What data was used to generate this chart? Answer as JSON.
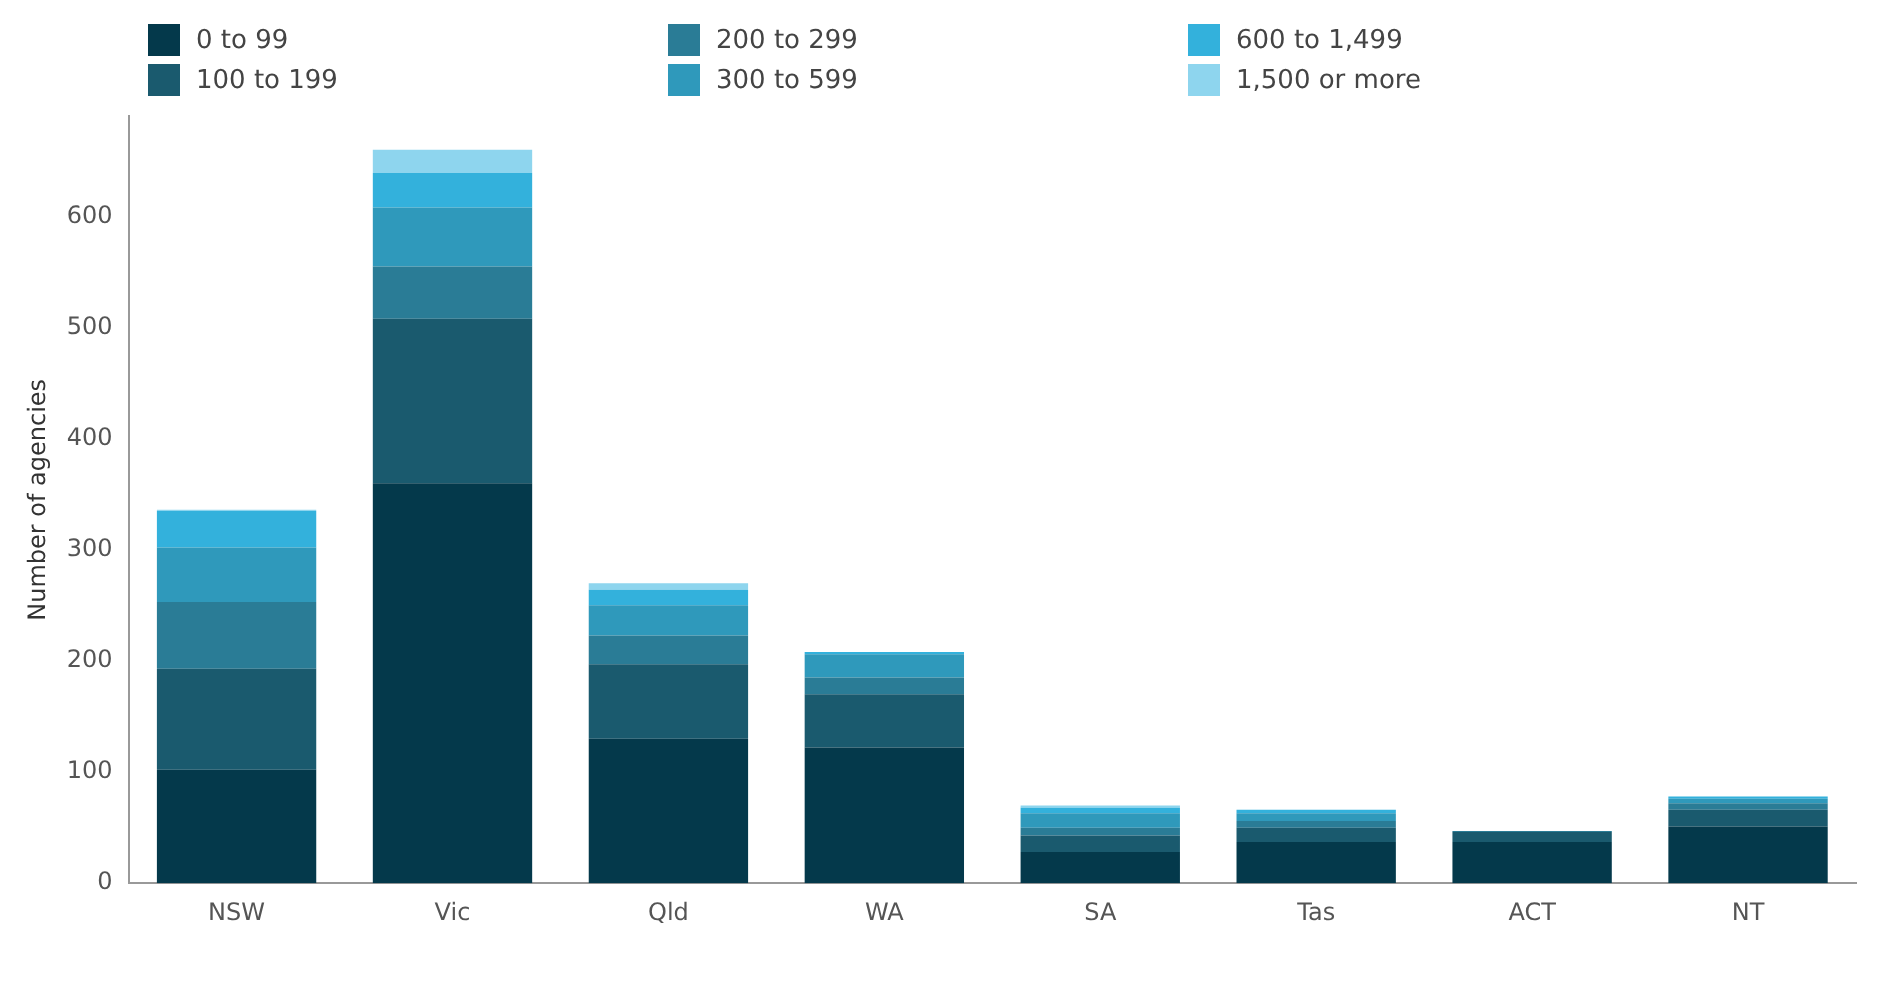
{
  "chart_data": {
    "type": "bar",
    "stacked": true,
    "ylabel": "Number of agencies",
    "categories": [
      "NSW",
      "Vic",
      "Qld",
      "WA",
      "SA",
      "Tas",
      "ACT",
      "NT"
    ],
    "series": [
      {
        "name": "0 to 99",
        "color": "#04394b",
        "values": [
          102,
          360,
          130,
          122,
          28,
          37,
          37,
          51
        ]
      },
      {
        "name": "100 to 199",
        "color": "#1a5a6e",
        "values": [
          91,
          148,
          67,
          48,
          15,
          13,
          9,
          15
        ]
      },
      {
        "name": "200 to 299",
        "color": "#2a7c96",
        "values": [
          60,
          47,
          26,
          15,
          7,
          6,
          1,
          6
        ]
      },
      {
        "name": "300 to 599",
        "color": "#2f99bb",
        "values": [
          49,
          53,
          27,
          21,
          13,
          7,
          0,
          4
        ]
      },
      {
        "name": "600 to 1,499",
        "color": "#33b1dc",
        "values": [
          33,
          31,
          14,
          2,
          5,
          3,
          0,
          2
        ]
      },
      {
        "name": "1,500 or more",
        "color": "#8ed5ee",
        "values": [
          1,
          21,
          6,
          0,
          2,
          0,
          0,
          0
        ]
      }
    ],
    "ylim": [
      0,
      690
    ],
    "yticks": [
      0,
      100,
      200,
      300,
      400,
      500,
      600
    ],
    "grid": false,
    "legend": "top"
  }
}
